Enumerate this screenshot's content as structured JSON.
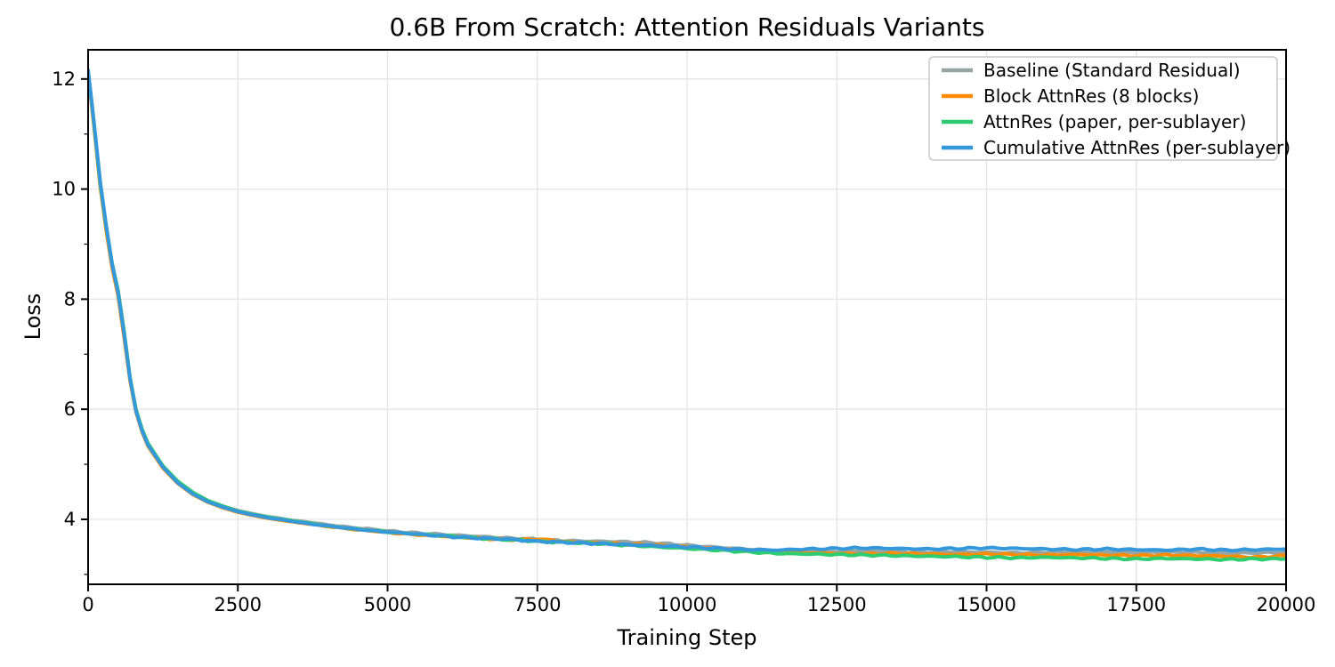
{
  "figure": {
    "background": "#ffffff"
  },
  "chart_data": {
    "type": "line",
    "title": "0.6B From Scratch: Attention Residuals Variants",
    "xlabel": "Training Step",
    "ylabel": "Loss",
    "xlim": [
      0,
      20000
    ],
    "ylim": [
      2.82,
      12.53
    ],
    "xticks": [
      0,
      2500,
      5000,
      7500,
      10000,
      12500,
      15000,
      17500,
      20000
    ],
    "yticks": [
      4,
      6,
      8,
      10,
      12
    ],
    "y_minor_ticks": [
      3,
      5,
      7,
      9,
      11
    ],
    "grid": true,
    "grid_color": "#e4e4e4",
    "legend_position": "upper right",
    "line_width": 4,
    "x": [
      0,
      100,
      200,
      300,
      400,
      500,
      600,
      700,
      800,
      900,
      1000,
      1250,
      1500,
      1750,
      2000,
      2250,
      2500,
      2750,
      3000,
      3250,
      3500,
      3750,
      4000,
      4250,
      4500,
      4750,
      5000,
      5500,
      6000,
      6500,
      7000,
      7250,
      7500,
      7750,
      8000,
      8500,
      9000,
      9500,
      10000,
      10500,
      11000,
      11500,
      12000,
      12500,
      13000,
      13500,
      14000,
      14500,
      15000,
      15500,
      16000,
      16500,
      17000,
      17500,
      18000,
      18500,
      19000,
      19500,
      20000
    ],
    "series": [
      {
        "name": "Baseline (Standard Residual)",
        "color": "#95a5a6",
        "values": [
          12.12,
          11.15,
          10.1,
          9.3,
          8.62,
          8.1,
          7.35,
          6.55,
          5.98,
          5.62,
          5.36,
          4.96,
          4.68,
          4.48,
          4.34,
          4.24,
          4.16,
          4.1,
          4.05,
          4.01,
          3.97,
          3.94,
          3.9,
          3.87,
          3.84,
          3.82,
          3.79,
          3.75,
          3.72,
          3.69,
          3.66,
          3.65,
          3.64,
          3.62,
          3.61,
          3.6,
          3.59,
          3.57,
          3.53,
          3.49,
          3.46,
          3.43,
          3.42,
          3.41,
          3.42,
          3.41,
          3.4,
          3.41,
          3.4,
          3.39,
          3.4,
          3.41,
          3.4,
          3.39,
          3.4,
          3.4,
          3.39,
          3.39,
          3.4
        ]
      },
      {
        "name": "Block AttnRes (8 blocks)",
        "color": "#ff8c00",
        "values": [
          12.1,
          11.12,
          10.06,
          9.26,
          8.58,
          8.06,
          7.31,
          6.52,
          5.95,
          5.59,
          5.33,
          4.93,
          4.65,
          4.45,
          4.31,
          4.21,
          4.13,
          4.07,
          4.02,
          3.98,
          3.94,
          3.91,
          3.87,
          3.84,
          3.81,
          3.79,
          3.76,
          3.72,
          3.69,
          3.66,
          3.63,
          3.63,
          3.64,
          3.62,
          3.59,
          3.57,
          3.55,
          3.53,
          3.5,
          3.46,
          3.43,
          3.4,
          3.39,
          3.38,
          3.37,
          3.38,
          3.37,
          3.36,
          3.37,
          3.36,
          3.35,
          3.36,
          3.35,
          3.34,
          3.35,
          3.34,
          3.33,
          3.31,
          3.34
        ]
      },
      {
        "name": "AttnRes (paper, per-sublayer)",
        "color": "#2ecc71",
        "values": [
          12.14,
          11.18,
          10.12,
          9.33,
          8.66,
          8.16,
          7.42,
          6.58,
          6.0,
          5.64,
          5.38,
          4.97,
          4.69,
          4.49,
          4.34,
          4.24,
          4.15,
          4.09,
          4.04,
          4.0,
          3.96,
          3.92,
          3.88,
          3.85,
          3.82,
          3.8,
          3.77,
          3.73,
          3.7,
          3.66,
          3.63,
          3.62,
          3.6,
          3.59,
          3.58,
          3.56,
          3.53,
          3.5,
          3.47,
          3.44,
          3.41,
          3.38,
          3.37,
          3.36,
          3.35,
          3.34,
          3.33,
          3.32,
          3.31,
          3.3,
          3.31,
          3.3,
          3.29,
          3.28,
          3.29,
          3.28,
          3.27,
          3.28,
          3.28
        ]
      },
      {
        "name": "Cumulative AttnRes (per-sublayer)",
        "color": "#3498db",
        "values": [
          12.16,
          11.2,
          10.15,
          9.35,
          8.64,
          8.12,
          7.38,
          6.56,
          5.97,
          5.61,
          5.35,
          4.95,
          4.66,
          4.46,
          4.32,
          4.22,
          4.14,
          4.08,
          4.03,
          3.99,
          3.95,
          3.91,
          3.88,
          3.85,
          3.82,
          3.79,
          3.77,
          3.73,
          3.69,
          3.66,
          3.64,
          3.62,
          3.6,
          3.59,
          3.58,
          3.56,
          3.54,
          3.52,
          3.5,
          3.47,
          3.45,
          3.44,
          3.46,
          3.47,
          3.48,
          3.47,
          3.46,
          3.47,
          3.48,
          3.47,
          3.46,
          3.45,
          3.46,
          3.45,
          3.44,
          3.46,
          3.44,
          3.45,
          3.46
        ]
      }
    ]
  }
}
